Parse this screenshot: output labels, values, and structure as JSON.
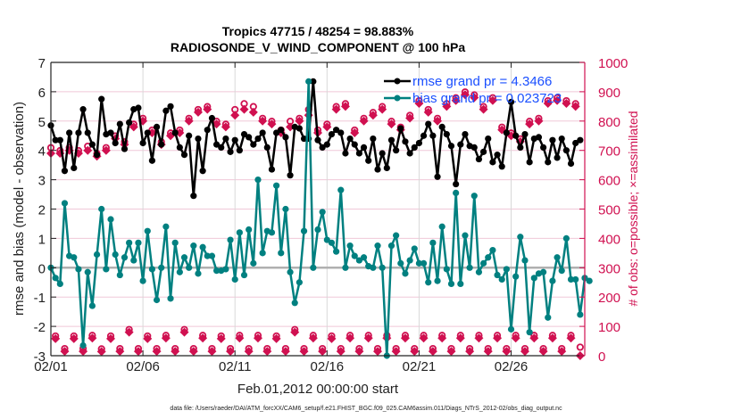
{
  "chart_data": {
    "type": "line",
    "title": "Tropics 47715 / 48254 = 98.883%",
    "subtitle": "RADIOSONDE_V_WIND_COMPONENT @ 100 hPa",
    "xlabel": "Feb.01,2012 00:00:00 start",
    "ylabel": "rmse and bias (model - observation)",
    "ylabel_right": "# of obs: o=possible; ×=assimilated",
    "footnote": "data file: /Users/raeder/DAI/ATM_forcXX/CAM6_setup/f.e21.FHIST_BGC.f09_025.CAM6assim.011/Diags_NTrS_2012-02/obs_diag_output.nc",
    "xlim_days": [
      0,
      29
    ],
    "ylim": [
      -3,
      7
    ],
    "ylim_right": [
      0,
      1000
    ],
    "grid": true,
    "x_ticks": [
      {
        "day": 0,
        "label": "02/01"
      },
      {
        "day": 5,
        "label": "02/06"
      },
      {
        "day": 10,
        "label": "02/11"
      },
      {
        "day": 15,
        "label": "02/16"
      },
      {
        "day": 20,
        "label": "02/21"
      },
      {
        "day": 25,
        "label": "02/26"
      }
    ],
    "y_ticks": [
      "-3",
      "-2",
      "-1",
      "0",
      "1",
      "2",
      "3",
      "4",
      "5",
      "6",
      "7"
    ],
    "y_ticks_right": [
      "0",
      "100",
      "200",
      "300",
      "400",
      "500",
      "600",
      "700",
      "800",
      "900",
      "1000"
    ],
    "legend": [
      {
        "name": "rmse",
        "label": "rmse grand pr = 4.3466",
        "color": "#000000"
      },
      {
        "name": "bias",
        "label": "bias grand pr = 0.023723",
        "color": "#008080"
      }
    ],
    "legend_position": "top-right",
    "time_step_days": 0.25,
    "series": [
      {
        "name": "rmse",
        "color": "#000000",
        "values": [
          4.85,
          4.35,
          4.35,
          3.3,
          4.6,
          3.4,
          4.6,
          5.4,
          4.6,
          4.2,
          3.85,
          5.75,
          4.55,
          4.6,
          4.25,
          4.9,
          4.05,
          4.95,
          5.4,
          5.45,
          4.25,
          4.6,
          3.65,
          4.8,
          4.2,
          5.35,
          5.5,
          4.6,
          4.1,
          3.85,
          4.5,
          2.45,
          4.4,
          3.3,
          4.7,
          5.1,
          4.2,
          4.1,
          4.4,
          3.95,
          4.35,
          4.0,
          4.55,
          4.45,
          4.2,
          4.4,
          4.6,
          4.1,
          3.35,
          4.6,
          4.7,
          4.45,
          3.15,
          4.8,
          4.75,
          4.4,
          4.4,
          6.35,
          4.35,
          4.1,
          4.2,
          4.55,
          4.7,
          4.6,
          3.9,
          4.4,
          4.2,
          3.9,
          4.1,
          3.65,
          4.4,
          3.35,
          3.9,
          3.4,
          4.35,
          4.0,
          4.75,
          4.3,
          3.9,
          4.1,
          4.25,
          4.5,
          4.9,
          4.5,
          3.1,
          4.8,
          4.55,
          4.15,
          2.85,
          4.2,
          4.55,
          4.15,
          4.1,
          3.7,
          3.95,
          4.4,
          3.6,
          3.85,
          3.45,
          4.6,
          5.65,
          4.5,
          4.1,
          4.55,
          3.6,
          4.4,
          4.45,
          4.1,
          3.6,
          4.35,
          3.75,
          4.4,
          4.0,
          3.55,
          4.25,
          4.35
        ]
      },
      {
        "name": "bias",
        "color": "#008080",
        "values": [
          0.0,
          -0.35,
          -0.55,
          2.2,
          0.4,
          0.35,
          -0.05,
          -2.65,
          -0.15,
          -1.3,
          0.45,
          2.0,
          -0.05,
          1.65,
          0.45,
          -0.25,
          0.35,
          0.85,
          0.25,
          0.85,
          -0.45,
          1.25,
          -0.05,
          -1.1,
          0.0,
          1.4,
          -1.05,
          0.85,
          -0.15,
          0.35,
          0.0,
          0.75,
          -0.2,
          0.7,
          0.4,
          0.4,
          -0.1,
          -0.1,
          -0.05,
          0.95,
          -0.4,
          1.2,
          -0.25,
          1.3,
          0.15,
          3.0,
          0.5,
          1.25,
          1.2,
          2.8,
          0.5,
          2.0,
          -0.15,
          -1.2,
          -0.5,
          1.25,
          6.35,
          0.0,
          1.3,
          1.9,
          0.95,
          0.85,
          0.55,
          2.65,
          0.0,
          0.75,
          0.4,
          0.25,
          0.35,
          0.05,
          0.0,
          0.75,
          0.0,
          -3.0,
          0.75,
          1.1,
          0.15,
          -0.2,
          0.25,
          0.65,
          0.15,
          0.15,
          -0.5,
          0.85,
          -0.45,
          1.4,
          -0.05,
          -0.55,
          2.55,
          -0.55,
          1.1,
          0.0,
          2.45,
          -0.15,
          0.15,
          0.35,
          0.6,
          -0.25,
          -0.4,
          -0.05,
          -2.1,
          -0.3,
          1.05,
          0.25,
          -2.2,
          -0.35,
          -0.2,
          -0.15,
          -1.7,
          -0.45,
          0.35,
          -0.1,
          1.0,
          -0.4,
          -0.4,
          -1.6,
          -0.35,
          -0.45
        ]
      },
      {
        "name": "obs_possible",
        "color": "#d01050",
        "values": [
          700,
          58,
          690,
          15,
          700,
          58,
          690,
          15,
          705,
          60,
          680,
          14,
          700,
          58,
          740,
          15,
          720,
          80,
          780,
          15,
          800,
          58,
          760,
          15,
          720,
          60,
          750,
          15,
          760,
          80,
          800,
          15,
          830,
          60,
          840,
          15,
          790,
          58,
          780,
          15,
          830,
          60,
          850,
          15,
          840,
          60,
          800,
          15,
          790,
          58,
          760,
          15,
          790,
          80,
          800,
          15,
          830,
          60,
          760,
          15,
          780,
          58,
          840,
          15,
          850,
          60,
          760,
          15,
          800,
          60,
          820,
          15,
          840,
          60,
          790,
          15,
          770,
          60,
          810,
          15,
          860,
          60,
          830,
          15,
          800,
          60,
          850,
          15,
          870,
          60,
          890,
          15,
          880,
          60,
          840,
          15,
          870,
          60,
          770,
          15,
          750,
          60,
          730,
          15,
          790,
          60,
          800,
          15,
          860,
          60,
          870,
          15,
          860,
          60,
          850,
          20
        ]
      },
      {
        "name": "obs_assimilated",
        "color": "#d01050",
        "values": [
          690,
          58,
          690,
          15,
          700,
          58,
          690,
          15,
          700,
          60,
          680,
          14,
          700,
          58,
          740,
          15,
          720,
          80,
          780,
          15,
          800,
          58,
          760,
          15,
          720,
          60,
          750,
          15,
          760,
          80,
          800,
          15,
          830,
          60,
          840,
          15,
          790,
          58,
          780,
          15,
          820,
          60,
          840,
          15,
          830,
          60,
          800,
          15,
          790,
          58,
          760,
          15,
          780,
          80,
          800,
          15,
          820,
          60,
          760,
          15,
          780,
          58,
          840,
          15,
          850,
          60,
          760,
          15,
          800,
          60,
          820,
          15,
          840,
          60,
          790,
          15,
          770,
          60,
          810,
          15,
          860,
          60,
          830,
          15,
          800,
          60,
          850,
          15,
          870,
          60,
          890,
          15,
          880,
          60,
          840,
          15,
          870,
          60,
          770,
          15,
          750,
          60,
          730,
          15,
          790,
          60,
          800,
          15,
          860,
          60,
          870,
          15,
          860,
          60,
          850,
          0
        ]
      }
    ]
  }
}
